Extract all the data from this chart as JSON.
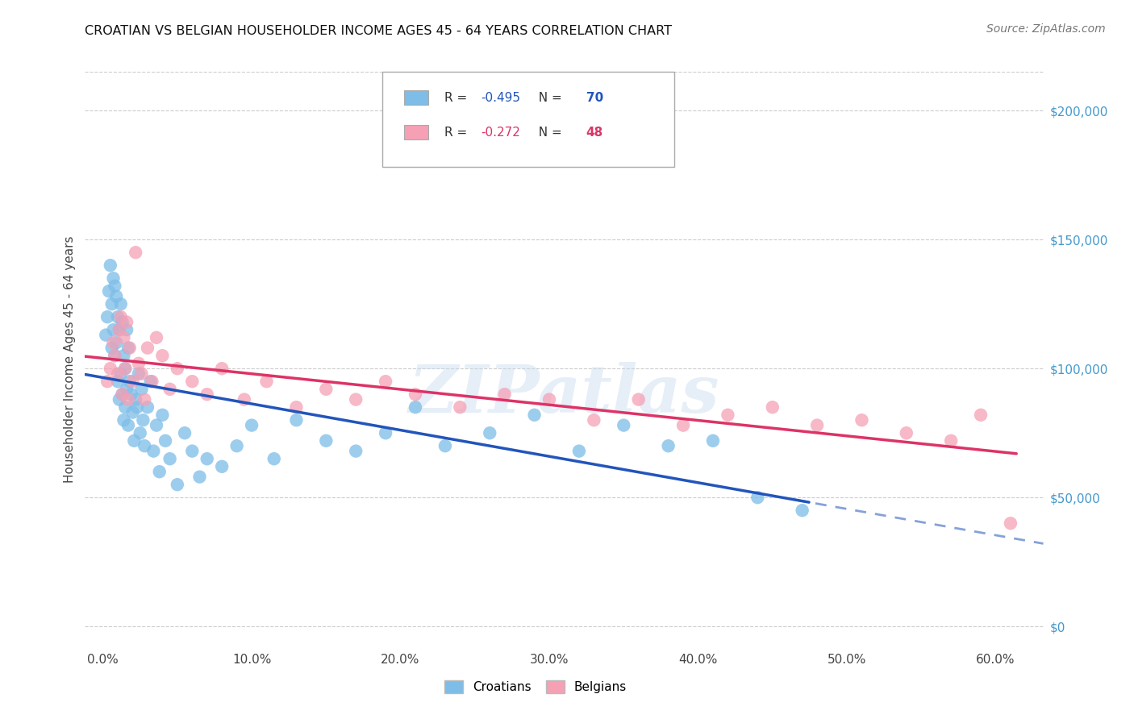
{
  "title": "CROATIAN VS BELGIAN HOUSEHOLDER INCOME AGES 45 - 64 YEARS CORRELATION CHART",
  "source": "Source: ZipAtlas.com",
  "ylabel": "Householder Income Ages 45 - 64 years",
  "xlabel_vals": [
    0.0,
    0.1,
    0.2,
    0.3,
    0.4,
    0.5,
    0.6
  ],
  "xlabel_labels": [
    "0.0%",
    "10.0%",
    "20.0%",
    "30.0%",
    "40.0%",
    "50.0%",
    "60.0%"
  ],
  "ylabel_vals": [
    0,
    50000,
    100000,
    150000,
    200000
  ],
  "ylabel_labels": [
    "$0",
    "$50,000",
    "$100,000",
    "$150,000",
    "$200,000"
  ],
  "ylim": [
    -8000,
    215000
  ],
  "xlim": [
    -0.012,
    0.632
  ],
  "croatian_R": "-0.495",
  "croatian_N": "70",
  "belgian_R": "-0.272",
  "belgian_N": "48",
  "croatian_color": "#7DBDE8",
  "belgian_color": "#F5A0B5",
  "croatian_line_color": "#2255BB",
  "belgian_line_color": "#DD3366",
  "watermark_text": "ZIPatlas",
  "background_color": "#FFFFFF",
  "grid_color": "#CCCCCC",
  "right_axis_color": "#4499CC",
  "title_color": "#111111",
  "source_color": "#777777",
  "label_color": "#444444",
  "croatians_x": [
    0.002,
    0.003,
    0.004,
    0.005,
    0.006,
    0.006,
    0.007,
    0.007,
    0.008,
    0.008,
    0.009,
    0.009,
    0.01,
    0.01,
    0.011,
    0.011,
    0.012,
    0.012,
    0.013,
    0.013,
    0.014,
    0.014,
    0.015,
    0.015,
    0.016,
    0.016,
    0.017,
    0.017,
    0.018,
    0.019,
    0.02,
    0.021,
    0.022,
    0.023,
    0.024,
    0.025,
    0.026,
    0.027,
    0.028,
    0.03,
    0.032,
    0.034,
    0.036,
    0.038,
    0.04,
    0.042,
    0.045,
    0.05,
    0.055,
    0.06,
    0.065,
    0.07,
    0.08,
    0.09,
    0.1,
    0.115,
    0.13,
    0.15,
    0.17,
    0.19,
    0.21,
    0.23,
    0.26,
    0.29,
    0.32,
    0.35,
    0.38,
    0.41,
    0.44,
    0.47
  ],
  "croatians_y": [
    113000,
    120000,
    130000,
    140000,
    125000,
    108000,
    135000,
    115000,
    132000,
    105000,
    128000,
    110000,
    120000,
    95000,
    115000,
    88000,
    125000,
    98000,
    118000,
    90000,
    105000,
    80000,
    100000,
    85000,
    115000,
    92000,
    108000,
    78000,
    95000,
    90000,
    83000,
    72000,
    88000,
    85000,
    98000,
    75000,
    92000,
    80000,
    70000,
    85000,
    95000,
    68000,
    78000,
    60000,
    82000,
    72000,
    65000,
    55000,
    75000,
    68000,
    58000,
    65000,
    62000,
    70000,
    78000,
    65000,
    80000,
    72000,
    68000,
    75000,
    85000,
    70000,
    75000,
    82000,
    68000,
    78000,
    70000,
    72000,
    50000,
    45000
  ],
  "belgians_x": [
    0.003,
    0.005,
    0.007,
    0.008,
    0.01,
    0.011,
    0.012,
    0.013,
    0.014,
    0.015,
    0.016,
    0.017,
    0.018,
    0.02,
    0.022,
    0.024,
    0.026,
    0.028,
    0.03,
    0.033,
    0.036,
    0.04,
    0.045,
    0.05,
    0.06,
    0.07,
    0.08,
    0.095,
    0.11,
    0.13,
    0.15,
    0.17,
    0.19,
    0.21,
    0.24,
    0.27,
    0.3,
    0.33,
    0.36,
    0.39,
    0.42,
    0.45,
    0.48,
    0.51,
    0.54,
    0.57,
    0.59,
    0.61
  ],
  "belgians_y": [
    95000,
    100000,
    110000,
    105000,
    98000,
    115000,
    120000,
    90000,
    112000,
    100000,
    118000,
    88000,
    108000,
    95000,
    145000,
    102000,
    98000,
    88000,
    108000,
    95000,
    112000,
    105000,
    92000,
    100000,
    95000,
    90000,
    100000,
    88000,
    95000,
    85000,
    92000,
    88000,
    95000,
    90000,
    85000,
    90000,
    88000,
    80000,
    88000,
    78000,
    82000,
    85000,
    78000,
    80000,
    75000,
    72000,
    82000,
    40000
  ]
}
